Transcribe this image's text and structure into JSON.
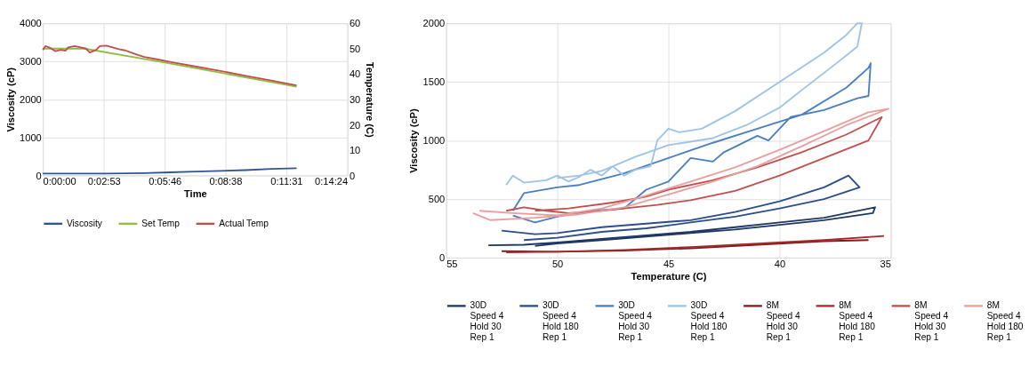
{
  "chart_data": [
    {
      "type": "line",
      "xlabel": "Time",
      "ylabel": "Viscosity (cP)",
      "y2label": "Temperature (C)",
      "xlim": [
        0,
        0.24
      ],
      "xticks": [
        {
          "value": 0,
          "label": "0:00:00"
        },
        {
          "value": 0.0481,
          "label": "0:02:53"
        },
        {
          "value": 0.0961,
          "label": "0:05:46"
        },
        {
          "value": 0.1439,
          "label": "0:08:38"
        },
        {
          "value": 0.1919,
          "label": "0:11:31"
        },
        {
          "value": 0.24,
          "label": "0:14:24"
        }
      ],
      "ylim": [
        0,
        4000
      ],
      "yticks": [
        0,
        1000,
        2000,
        3000,
        4000
      ],
      "y2lim": [
        0,
        60
      ],
      "y2ticks": [
        0,
        10,
        20,
        30,
        40,
        50,
        60
      ],
      "grid": true,
      "legend": "bottom",
      "marker": "none",
      "line_style": "solid",
      "series": [
        {
          "name": "Viscosity",
          "color": "#2f5597",
          "x": [
            0,
            0.02,
            0.05,
            0.08,
            0.1,
            0.12,
            0.14,
            0.16,
            0.18,
            0.2
          ],
          "values": [
            50,
            50,
            50,
            60,
            80,
            100,
            120,
            140,
            170,
            190
          ]
        },
        {
          "name": "Set Temp",
          "color": "#8fbc45",
          "axis": "y2",
          "x": [
            0,
            0.033,
            0.096,
            0.2
          ],
          "values": [
            50,
            50,
            44.5,
            35
          ]
        },
        {
          "name": "Actual Temp",
          "color": "#c0504d",
          "axis": "y2",
          "x": [
            0,
            0.002,
            0.005,
            0.01,
            0.014,
            0.018,
            0.02,
            0.025,
            0.03,
            0.034,
            0.037,
            0.042,
            0.045,
            0.05,
            0.055,
            0.06,
            0.065,
            0.07,
            0.075,
            0.08,
            0.09,
            0.1,
            0.12,
            0.14,
            0.16,
            0.18,
            0.2
          ],
          "values": [
            49.5,
            51,
            50.5,
            49,
            49.5,
            49.2,
            50.5,
            51,
            50.5,
            50,
            48.5,
            49.5,
            51,
            51.2,
            50.5,
            49.8,
            49.3,
            48.4,
            47.5,
            46.7,
            45.8,
            44.8,
            43,
            41.2,
            39.3,
            37.4,
            35.5
          ]
        }
      ]
    },
    {
      "type": "line",
      "xlabel": "Temperature (C)",
      "ylabel": "Viscosity (cP)",
      "xlim": [
        55,
        35
      ],
      "xticks": [
        55,
        50,
        45,
        40,
        35
      ],
      "ylim": [
        0,
        2000
      ],
      "yticks": [
        0,
        500,
        1000,
        1500,
        2000
      ],
      "grid": true,
      "legend": "bottom",
      "marker": "none",
      "line_style": "solid",
      "series": [
        {
          "name": "30D\nSpeed 4\nHold 30\nRep 1",
          "color": "#1f3864",
          "x": [
            53.1,
            51.5,
            50,
            48,
            46,
            44,
            42,
            40,
            38,
            35.7,
            35.8,
            38,
            40,
            42,
            44,
            46,
            48,
            50,
            51
          ],
          "values": [
            105,
            110,
            130,
            160,
            190,
            220,
            260,
            300,
            340,
            430,
            380,
            320,
            280,
            240,
            210,
            180,
            150,
            120,
            100
          ]
        },
        {
          "name": "30D\nSpeed 4\nHold 180\nRep 1",
          "color": "#2b4d8a",
          "x": [
            52.5,
            51,
            50,
            48,
            46,
            44,
            42,
            40,
            38,
            36.9,
            36.4,
            38,
            40,
            42,
            44,
            46,
            48,
            50,
            51.5
          ],
          "values": [
            230,
            200,
            210,
            260,
            290,
            320,
            390,
            480,
            600,
            700,
            600,
            500,
            420,
            350,
            300,
            250,
            220,
            170,
            150
          ]
        },
        {
          "name": "30D\nSpeed 4\nHold 30\nRep 1",
          "color": "#4a7fc1",
          "x": [
            52,
            51.5,
            50,
            49,
            47,
            45,
            43,
            41,
            39,
            37,
            36,
            35.9,
            36.0,
            36.5,
            38,
            39.5,
            40.5,
            41,
            42.5,
            43,
            44,
            45,
            46,
            47,
            48.5,
            50,
            51,
            52
          ],
          "values": [
            400,
            550,
            600,
            620,
            720,
            850,
            980,
            1100,
            1220,
            1450,
            1620,
            1660,
            1380,
            1360,
            1260,
            1200,
            1000,
            1040,
            900,
            820,
            850,
            650,
            580,
            420,
            400,
            350,
            300,
            360
          ]
        },
        {
          "name": "30D\nSpeed 4\nHold 180\nRep 1",
          "color": "#9dc3e6",
          "x": [
            52.3,
            52.0,
            51.5,
            50.5,
            50,
            49.5,
            49,
            48.5,
            48,
            47.5,
            47,
            46.5,
            45.8,
            45.5,
            45,
            44.5,
            43.5,
            42,
            40,
            38,
            37,
            36.5,
            36.3,
            36.5,
            37.5,
            39,
            40,
            41.5,
            43,
            45,
            46.5,
            48,
            49,
            50
          ],
          "values": [
            620,
            700,
            640,
            660,
            700,
            650,
            690,
            750,
            700,
            780,
            700,
            750,
            780,
            1000,
            1100,
            1070,
            1100,
            1250,
            1500,
            1750,
            1900,
            2000,
            2000,
            1800,
            1650,
            1430,
            1280,
            1130,
            1020,
            960,
            860,
            740,
            700,
            680
          ]
        },
        {
          "name": "8M\nSpeed 4\nHold 30\nRep 1",
          "color": "#7b1f1f",
          "x": [
            52.5,
            50,
            47,
            44,
            41,
            38,
            36.0
          ],
          "values": [
            55,
            50,
            60,
            80,
            110,
            140,
            150
          ]
        },
        {
          "name": "8M\nSpeed 4\nHold 180\nRep 1",
          "color": "#a52a2a",
          "x": [
            52.3,
            50,
            47,
            44,
            41,
            38,
            35.3
          ],
          "values": [
            45,
            50,
            65,
            90,
            120,
            150,
            185
          ]
        },
        {
          "name": "8M\nSpeed 4\nHold 30\nRep 1",
          "color": "#c0504d",
          "x": [
            52.3,
            51.5,
            50.5,
            49.5,
            48,
            47,
            45.5,
            44,
            42,
            40,
            38,
            36,
            35.4,
            37,
            39,
            41,
            43,
            45,
            46,
            47.5,
            49.5,
            51
          ],
          "values": [
            400,
            430,
            400,
            380,
            400,
            420,
            450,
            490,
            570,
            700,
            850,
            1000,
            1200,
            1050,
            900,
            770,
            660,
            580,
            520,
            470,
            420,
            400
          ]
        },
        {
          "name": "8M\nSpeed 4\nHold 180\nRep 1",
          "color": "#e6a0a0",
          "x": [
            53.8,
            53,
            51,
            49,
            47,
            45,
            43,
            41,
            39,
            37,
            35.1,
            36,
            38,
            40,
            42,
            44,
            46,
            48,
            50,
            52,
            53.5
          ],
          "values": [
            380,
            320,
            340,
            370,
            430,
            540,
            650,
            780,
            950,
            1130,
            1270,
            1240,
            1080,
            920,
            770,
            650,
            530,
            420,
            360,
            380,
            400
          ]
        }
      ]
    }
  ]
}
